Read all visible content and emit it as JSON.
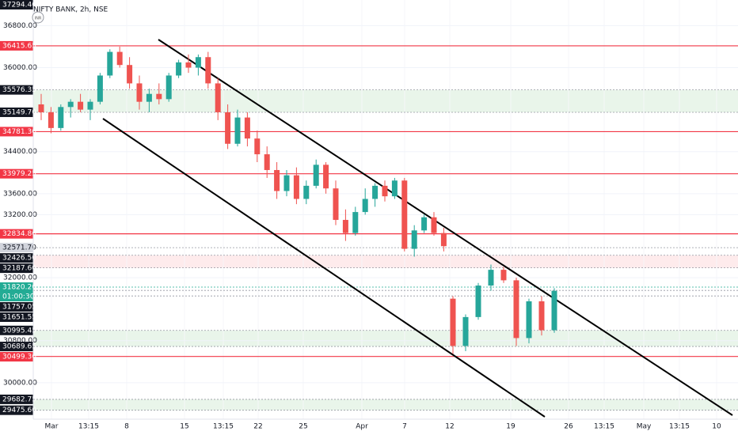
{
  "chart_data": {
    "type": "candlestick",
    "title": "NIFTY BANK, 2h, NSE",
    "currency": "INR",
    "up_color": "#26a69a",
    "down_color": "#ef5350",
    "ylim": [
      29305,
      37288
    ],
    "yticks": [
      {
        "value": 36800,
        "label": "36800.00"
      },
      {
        "value": 36000,
        "label": "36000.00"
      },
      {
        "value": 34400,
        "label": "34400.00"
      },
      {
        "value": 33600,
        "label": "33600.00"
      },
      {
        "value": 33200,
        "label": "33200.00"
      },
      {
        "value": 32000,
        "label": "32000.00"
      },
      {
        "value": 30800,
        "label": "30800.00"
      },
      {
        "value": 30000,
        "label": "30000.00"
      }
    ],
    "x_labels": [
      "Mar",
      "13:15",
      "8",
      "15",
      "13:15",
      "22",
      "25",
      "Apr",
      "7",
      "12",
      "19",
      "26",
      "13:15",
      "May",
      "13:15",
      "10"
    ],
    "levels": [
      {
        "value": 37294.4,
        "label": "37294.40",
        "color": "#131722"
      },
      {
        "value": 36415.65,
        "label": "36415.65",
        "color": "#f23645"
      },
      {
        "value": 35576.35,
        "label": "35576.35",
        "color": "#131722"
      },
      {
        "value": 35149.7,
        "label": "35149.70",
        "color": "#131722"
      },
      {
        "value": 34781.3,
        "label": "34781.30",
        "color": "#f23645"
      },
      {
        "value": 33979.25,
        "label": "33979.25",
        "color": "#f23645"
      },
      {
        "value": 32834.8,
        "label": "32834.80",
        "color": "#f23645"
      },
      {
        "value": 32571.7,
        "label": "32571.70",
        "color": "#d1d4dc"
      },
      {
        "value": 32426.5,
        "label": "32426.50",
        "color": "#131722"
      },
      {
        "value": 32187.6,
        "label": "32187.60",
        "color": "#131722"
      },
      {
        "value": 31820.2,
        "label": "31820.20",
        "color": "#22ab94"
      },
      {
        "value": 31757.05,
        "label": "31757.05",
        "color": "#131722"
      },
      {
        "value": 31651.55,
        "label": "31651.55",
        "color": "#131722"
      },
      {
        "value": 30995.45,
        "label": "30995.45",
        "color": "#131722"
      },
      {
        "value": 30689.65,
        "label": "30689.65",
        "color": "#131722"
      },
      {
        "value": 30499.3,
        "label": "30499.30",
        "color": "#f23645"
      },
      {
        "value": 29682.75,
        "label": "29682.75",
        "color": "#131722"
      },
      {
        "value": 29475.6,
        "label": "29475.60",
        "color": "#131722"
      }
    ],
    "countdown": "01:00:30",
    "candles": [
      {
        "open": 35300,
        "high": 35500,
        "low": 35000,
        "close": 35150
      },
      {
        "open": 35150,
        "high": 35250,
        "low": 34750,
        "close": 34850
      },
      {
        "open": 34850,
        "high": 35300,
        "low": 34800,
        "close": 35250
      },
      {
        "open": 35250,
        "high": 35400,
        "low": 35050,
        "close": 35350
      },
      {
        "open": 35350,
        "high": 35500,
        "low": 35150,
        "close": 35200
      },
      {
        "open": 35200,
        "high": 35400,
        "low": 35000,
        "close": 35350
      },
      {
        "open": 35350,
        "high": 35900,
        "low": 35300,
        "close": 35850
      },
      {
        "open": 35850,
        "high": 36350,
        "low": 35800,
        "close": 36300
      },
      {
        "open": 36300,
        "high": 36400,
        "low": 36000,
        "close": 36050
      },
      {
        "open": 36050,
        "high": 36200,
        "low": 35600,
        "close": 35700
      },
      {
        "open": 35700,
        "high": 35850,
        "low": 35200,
        "close": 35350
      },
      {
        "open": 35350,
        "high": 35600,
        "low": 35150,
        "close": 35500
      },
      {
        "open": 35500,
        "high": 35700,
        "low": 35300,
        "close": 35400
      },
      {
        "open": 35400,
        "high": 35900,
        "low": 35350,
        "close": 35850
      },
      {
        "open": 35850,
        "high": 36150,
        "low": 35800,
        "close": 36100
      },
      {
        "open": 36100,
        "high": 36250,
        "low": 35900,
        "close": 36000
      },
      {
        "open": 36000,
        "high": 36250,
        "low": 35850,
        "close": 36200
      },
      {
        "open": 36200,
        "high": 36300,
        "low": 35600,
        "close": 35700
      },
      {
        "open": 35700,
        "high": 35800,
        "low": 35000,
        "close": 35150
      },
      {
        "open": 35150,
        "high": 35300,
        "low": 34450,
        "close": 34550
      },
      {
        "open": 34550,
        "high": 35200,
        "low": 34500,
        "close": 35050
      },
      {
        "open": 35050,
        "high": 35150,
        "low": 34500,
        "close": 34650
      },
      {
        "open": 34650,
        "high": 34800,
        "low": 34200,
        "close": 34350
      },
      {
        "open": 34350,
        "high": 34500,
        "low": 33900,
        "close": 34050
      },
      {
        "open": 34050,
        "high": 34200,
        "low": 33500,
        "close": 33650
      },
      {
        "open": 33650,
        "high": 34050,
        "low": 33550,
        "close": 33950
      },
      {
        "open": 33950,
        "high": 34100,
        "low": 33400,
        "close": 33500
      },
      {
        "open": 33500,
        "high": 33850,
        "low": 33400,
        "close": 33750
      },
      {
        "open": 33750,
        "high": 34250,
        "low": 33700,
        "close": 34150
      },
      {
        "open": 34150,
        "high": 34200,
        "low": 33600,
        "close": 33700
      },
      {
        "open": 33700,
        "high": 33850,
        "low": 33000,
        "close": 33100
      },
      {
        "open": 33100,
        "high": 33300,
        "low": 32700,
        "close": 32850
      },
      {
        "open": 32850,
        "high": 33350,
        "low": 32800,
        "close": 33250
      },
      {
        "open": 33250,
        "high": 33700,
        "low": 33200,
        "close": 33500
      },
      {
        "open": 33500,
        "high": 33800,
        "low": 33350,
        "close": 33750
      },
      {
        "open": 33750,
        "high": 33850,
        "low": 33450,
        "close": 33550
      },
      {
        "open": 33550,
        "high": 33900,
        "low": 33500,
        "close": 33850
      },
      {
        "open": 33850,
        "high": 33900,
        "low": 32500,
        "close": 32550
      },
      {
        "open": 32550,
        "high": 33000,
        "low": 32400,
        "close": 32900
      },
      {
        "open": 32900,
        "high": 33200,
        "low": 32850,
        "close": 33150
      },
      {
        "open": 33150,
        "high": 33250,
        "low": 32800,
        "close": 32850
      },
      {
        "open": 32850,
        "high": 32950,
        "low": 32500,
        "close": 32600
      },
      {
        "open": 31600,
        "high": 31650,
        "low": 30550,
        "close": 30700
      },
      {
        "open": 30700,
        "high": 31300,
        "low": 30600,
        "close": 31250
      },
      {
        "open": 31250,
        "high": 31900,
        "low": 31200,
        "close": 31850
      },
      {
        "open": 31850,
        "high": 32250,
        "low": 31750,
        "close": 32150
      },
      {
        "open": 32150,
        "high": 32200,
        "low": 31900,
        "close": 31950
      },
      {
        "open": 31950,
        "high": 32000,
        "low": 30700,
        "close": 30850
      },
      {
        "open": 30850,
        "high": 31600,
        "low": 30750,
        "close": 31550
      },
      {
        "open": 31550,
        "high": 31650,
        "low": 30900,
        "close": 31000
      },
      {
        "open": 31000,
        "high": 31800,
        "low": 30950,
        "close": 31750
      }
    ]
  }
}
